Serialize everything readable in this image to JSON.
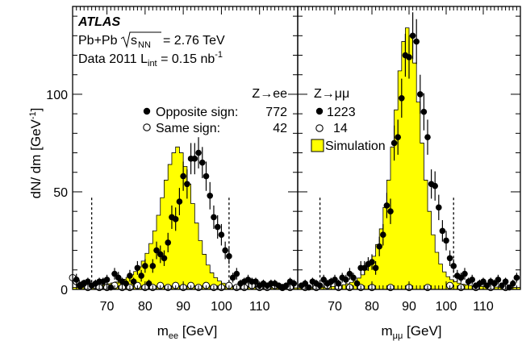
{
  "chart_data": [
    {
      "type": "histogram",
      "panel": "left",
      "xlabel_main": "m",
      "xlabel_sub": "ee",
      "xlabel_unit": " [GeV]",
      "ylabel": "dN/ dm [GeV",
      "ylabel_sup": "-1",
      "ylabel_close": "]",
      "xlim": [
        61,
        120
      ],
      "ylim": [
        0,
        145
      ],
      "xticks": [
        70,
        80,
        90,
        100,
        110
      ],
      "yticks": [
        0,
        50,
        100
      ],
      "mass_window_lines": [
        66,
        102
      ],
      "atlas_label": "ATLAS",
      "collision_line": "Pb+Pb",
      "energy_label": "= 2.76 TeV",
      "data_line_prefix": "Data 2011 L",
      "data_line_suffix": " = 0.15 nb",
      "lumi_sup": "-1",
      "channel_label": "Z→ee",
      "legend": [
        {
          "marker": "filled-circle",
          "label": "Opposite sign:",
          "count": "772"
        },
        {
          "marker": "open-circle",
          "label": "Same sign:",
          "count": "42"
        }
      ],
      "sim_bins": {
        "start": 61,
        "width": 1,
        "values": [
          1.0,
          1.0,
          1.2,
          1.3,
          1.5,
          1.7,
          1.9,
          2.2,
          2.5,
          2.9,
          3.3,
          3.8,
          4.4,
          5.2,
          6.2,
          7.5,
          9.2,
          11.5,
          14.5,
          18.5,
          23.5,
          30,
          38,
          47,
          56,
          64,
          70,
          73,
          70,
          63,
          54,
          44,
          34,
          25,
          18,
          12.5,
          8.5,
          6,
          4.3,
          3.2,
          2.5,
          2.0,
          1.7,
          1.5,
          1.3,
          1.2,
          1.1,
          1.0,
          1.0,
          0.9,
          0.9,
          0.9,
          0.8,
          0.8,
          0.8,
          0.8,
          0.8,
          0.8,
          0.8
        ]
      },
      "opposite_sign": {
        "x": [
          62,
          63,
          64,
          65,
          66,
          67,
          68,
          69,
          70,
          71,
          72,
          73,
          74,
          75,
          76,
          77,
          78,
          79,
          80,
          81,
          82,
          83,
          84,
          85,
          86,
          87,
          88,
          89,
          90,
          91,
          92,
          93,
          94,
          95,
          96,
          97,
          98,
          99,
          100,
          101,
          102,
          103,
          104,
          105,
          106,
          107,
          108,
          109,
          110,
          111,
          112,
          113,
          114,
          115,
          116,
          117,
          118,
          119
        ],
        "y": [
          5,
          2,
          3,
          4,
          2,
          3,
          4,
          4,
          5,
          1,
          8,
          6,
          4,
          3,
          7,
          4,
          11,
          7,
          12,
          3,
          12,
          20,
          18,
          16,
          24,
          37,
          36,
          45,
          58,
          54,
          67,
          67,
          70,
          65,
          58,
          48,
          37,
          32,
          28,
          20,
          17,
          6,
          8,
          3,
          4,
          5,
          4,
          4,
          2,
          3,
          2,
          3,
          3,
          2,
          1,
          2,
          4,
          3
        ],
        "err": [
          3,
          1.5,
          2,
          2,
          1.5,
          2,
          2,
          2,
          2.5,
          1,
          3,
          3,
          2,
          2,
          3,
          2,
          3.5,
          3,
          3.5,
          2,
          3.5,
          4.5,
          4.5,
          4,
          5,
          6,
          6,
          7,
          7.5,
          7.5,
          8,
          8,
          8,
          8,
          7.5,
          7,
          6,
          6,
          5.5,
          4.5,
          4,
          2.5,
          3,
          2,
          2,
          2.5,
          2,
          2,
          1.5,
          2,
          1.5,
          2,
          2,
          1.5,
          1,
          1.5,
          2,
          2
        ]
      },
      "same_sign": {
        "x": [
          61,
          62,
          63,
          64,
          65,
          67,
          68,
          70,
          72,
          74,
          76,
          78,
          80,
          82,
          84,
          86,
          88,
          90,
          92,
          94,
          96,
          98,
          100,
          102,
          104,
          106,
          108,
          110,
          112,
          114,
          116,
          118
        ],
        "y": [
          6,
          4,
          2,
          3,
          1,
          2,
          1,
          1,
          2,
          1,
          1,
          2,
          1,
          1,
          2,
          1,
          2,
          1,
          2,
          1,
          2,
          1,
          1,
          2,
          1,
          1,
          2,
          1,
          1,
          2,
          1,
          1
        ]
      }
    },
    {
      "type": "histogram",
      "panel": "right",
      "xlabel_main": "m",
      "xlabel_sub": "μμ",
      "xlabel_unit": " [GeV]",
      "xlim": [
        60,
        120
      ],
      "ylim": [
        0,
        145
      ],
      "xticks": [
        70,
        80,
        90,
        100,
        110
      ],
      "mass_window_lines": [
        66,
        102
      ],
      "channel_label": "Z→μμ",
      "legend": [
        {
          "marker": "filled-circle",
          "label": "",
          "count": "1223"
        },
        {
          "marker": "open-circle",
          "label": "",
          "count": "14"
        },
        {
          "marker": "yellow-box",
          "label": "Simulation",
          "count": ""
        }
      ],
      "sim_bins": {
        "start": 60,
        "width": 1,
        "values": [
          0.8,
          0.8,
          0.9,
          0.9,
          1.0,
          1.0,
          1.1,
          1.2,
          1.3,
          1.5,
          1.7,
          2.0,
          2.4,
          2.9,
          3.6,
          4.5,
          5.8,
          7.5,
          10,
          13,
          17,
          23,
          31,
          42,
          56,
          73,
          92,
          112,
          127,
          134,
          130,
          116,
          96,
          75,
          56,
          40,
          28,
          19,
          13,
          9,
          6.5,
          5,
          4,
          3.2,
          2.7,
          2.3,
          2.0,
          1.8,
          1.6,
          1.5,
          1.4,
          1.3,
          1.2,
          1.2,
          1.1,
          1.1,
          1.0,
          1.0,
          1.0,
          1.0
        ]
      },
      "opposite_sign": {
        "x": [
          61,
          62,
          63,
          64,
          65,
          66,
          67,
          68,
          69,
          70,
          71,
          72,
          73,
          74,
          75,
          76,
          77,
          78,
          79,
          80,
          81,
          82,
          83,
          84,
          85,
          86,
          87,
          88,
          89,
          90,
          91,
          92,
          93,
          94,
          95,
          96,
          97,
          98,
          99,
          100,
          101,
          102,
          103,
          104,
          105,
          106,
          107,
          108,
          109,
          110,
          111,
          112,
          113,
          114,
          115,
          116,
          117,
          118,
          119
        ],
        "y": [
          2,
          3,
          1,
          4,
          3,
          2,
          5,
          3,
          4,
          5,
          3,
          6,
          5,
          8,
          6,
          3,
          11,
          11,
          13,
          14,
          11,
          22,
          28,
          43,
          40,
          75,
          78,
          98,
          120,
          119,
          130,
          127,
          100,
          91,
          78,
          54,
          53,
          42,
          30,
          25,
          16,
          12,
          7,
          6,
          8,
          4,
          5,
          2,
          3,
          4,
          2,
          4,
          3,
          5,
          2,
          4,
          1,
          3,
          6
        ],
        "err": [
          1.5,
          2,
          1,
          2,
          2,
          1.5,
          2.5,
          2,
          2,
          2.5,
          2,
          2.5,
          2.5,
          3,
          2.5,
          2,
          3.5,
          3.5,
          3.5,
          4,
          3.5,
          5,
          5.5,
          6.5,
          6.5,
          9,
          9,
          10,
          11,
          11,
          12,
          11.5,
          10,
          9.5,
          9,
          7.5,
          7.5,
          6.5,
          5.5,
          5,
          4,
          3.5,
          3,
          2.5,
          3,
          2,
          2.5,
          1.5,
          2,
          2,
          1.5,
          2,
          2,
          2.5,
          1.5,
          2,
          1,
          2,
          2.5
        ]
      },
      "same_sign": {
        "x": [
          62,
          65,
          68,
          71,
          74,
          77,
          80,
          85,
          90,
          95,
          101,
          104,
          108,
          112,
          116
        ],
        "y": [
          1,
          1,
          2,
          1,
          1,
          1,
          1,
          1,
          1,
          1,
          2,
          1,
          1,
          1,
          1
        ]
      }
    }
  ]
}
